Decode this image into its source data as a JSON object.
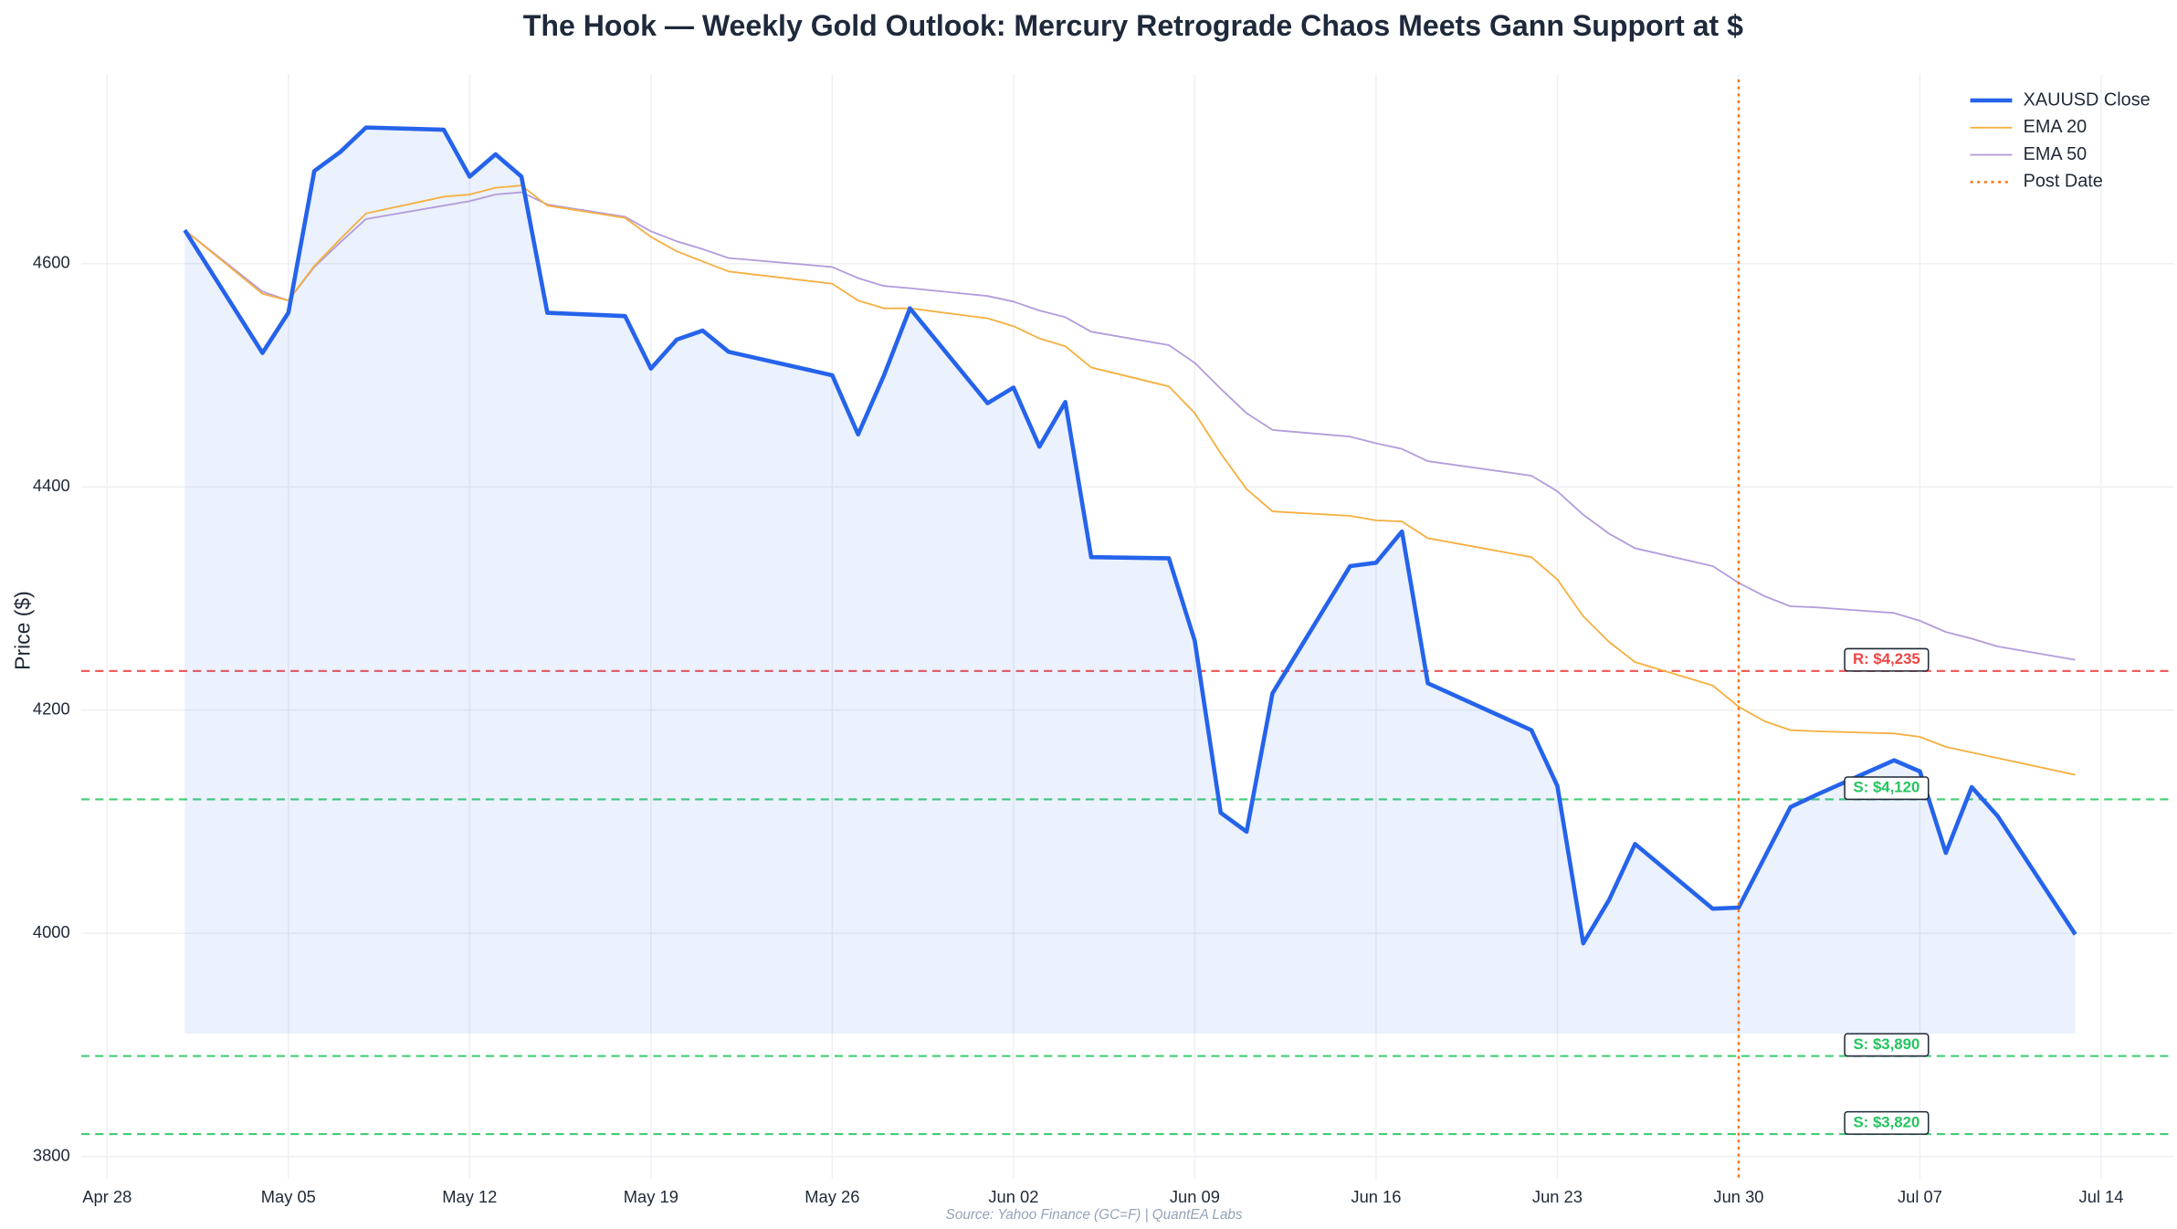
{
  "chart_data": {
    "type": "line",
    "title": "The Hook — Weekly Gold Outlook: Mercury Retrograde Chaos Meets Gann Support at $",
    "y_label": "Price ($)",
    "source": "Source: Yahoo Finance (GC=F) | QuantEA Labs",
    "x": [
      "May 01",
      "May 04",
      "May 05",
      "May 06",
      "May 07",
      "May 08",
      "May 11",
      "May 12",
      "May 13",
      "May 14",
      "May 15",
      "May 18",
      "May 19",
      "May 20",
      "May 21",
      "May 22",
      "May 26",
      "May 27",
      "May 28",
      "May 29",
      "Jun 01",
      "Jun 02",
      "Jun 03",
      "Jun 04",
      "Jun 05",
      "Jun 08",
      "Jun 09",
      "Jun 10",
      "Jun 11",
      "Jun 12",
      "Jun 15",
      "Jun 16",
      "Jun 17",
      "Jun 18",
      "Jun 22",
      "Jun 23",
      "Jun 24",
      "Jun 25",
      "Jun 26",
      "Jun 29",
      "Jun 30",
      "Jul 01",
      "Jul 02",
      "Jul 03",
      "Jul 06",
      "Jul 07",
      "Jul 08",
      "Jul 09",
      "Jul 10",
      "Jul 13"
    ],
    "series": [
      {
        "name": "XAUUSD Close",
        "color": "#2563eb",
        "width": 3,
        "fill": true,
        "fill_to": 3910,
        "values": [
          4630,
          4520,
          4556,
          4683,
          4700,
          4722,
          4720,
          4678,
          4698,
          4678,
          4556,
          4553,
          4506,
          4532,
          4540,
          4521,
          4500,
          4447,
          4500,
          4560,
          4475,
          4489,
          4436,
          4476,
          4337,
          4336,
          4262,
          4108,
          4091,
          4215,
          4329,
          4332,
          4360,
          4224,
          4182,
          4132,
          3991,
          4030,
          4080,
          4022,
          4023,
          4068,
          4113,
          4124,
          4155,
          4145,
          4072,
          4131,
          4105,
          3999
        ]
      },
      {
        "name": "EMA 20",
        "color": "#f5b041",
        "width": 1.2,
        "values": [
          4630,
          4573,
          4567,
          4598,
          4622,
          4645,
          4660,
          4662,
          4668,
          4670,
          4652,
          4641,
          4624,
          4611,
          4602,
          4593,
          4582,
          4567,
          4560,
          4560,
          4551,
          4544,
          4533,
          4526,
          4507,
          4490,
          4466,
          4430,
          4398,
          4378,
          4374,
          4370,
          4369,
          4354,
          4337,
          4317,
          4284,
          4261,
          4243,
          4222,
          4203,
          4190,
          4182,
          4181,
          4179,
          4176,
          4167,
          4162,
          4157,
          4142
        ]
      },
      {
        "name": "EMA 50",
        "color": "#b39ddb",
        "width": 1.2,
        "values": [
          4630,
          4575,
          4567,
          4597,
          4619,
          4640,
          4652,
          4656,
          4662,
          4664,
          4653,
          4642,
          4629,
          4620,
          4613,
          4605,
          4597,
          4587,
          4580,
          4578,
          4571,
          4566,
          4558,
          4552,
          4539,
          4527,
          4511,
          4488,
          4466,
          4451,
          4445,
          4439,
          4434,
          4423,
          4410,
          4396,
          4375,
          4358,
          4345,
          4329,
          4314,
          4302,
          4293,
          4292,
          4287,
          4280,
          4270,
          4264,
          4257,
          4245
        ]
      }
    ],
    "hlines": [
      {
        "value": 4235,
        "label": "R: $4,235",
        "color": "#ef4444"
      },
      {
        "value": 4120,
        "label": "S: $4,120",
        "color": "#22c55e"
      },
      {
        "value": 3890,
        "label": "S: $3,890",
        "color": "#22c55e"
      },
      {
        "value": 3820,
        "label": "S: $3,820",
        "color": "#22c55e"
      }
    ],
    "vline": {
      "x": "Jun 30",
      "name": "Post Date",
      "color": "#f97316"
    },
    "xlim": [
      "Apr 27",
      "Jul 16"
    ],
    "xticks": [
      "Apr 28",
      "May 05",
      "May 12",
      "May 19",
      "May 26",
      "Jun 02",
      "Jun 09",
      "Jun 16",
      "Jun 23",
      "Jun 30",
      "Jul 07",
      "Jul 14"
    ],
    "ylim": [
      3780,
      4770
    ],
    "yticks": [
      3800,
      4000,
      4200,
      4400,
      4600
    ],
    "grid": true,
    "legend": "upper right"
  }
}
